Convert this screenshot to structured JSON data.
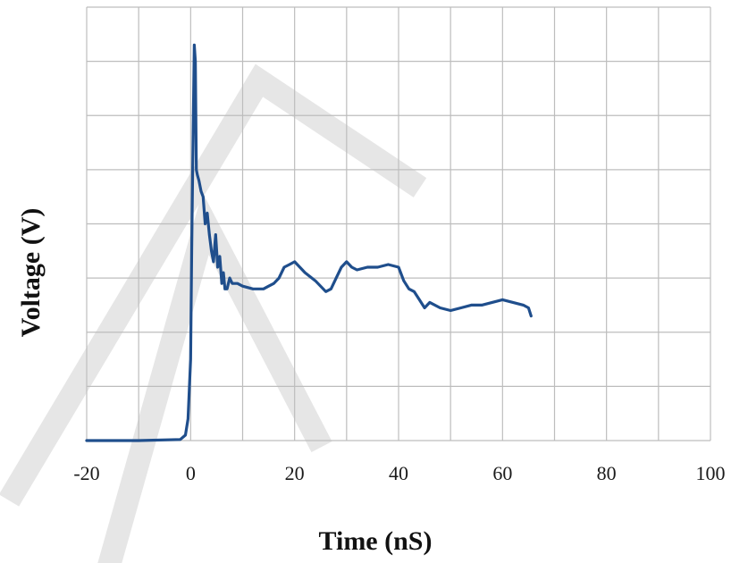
{
  "chart_data": {
    "type": "line",
    "title": "",
    "xlabel": "Time  (nS)",
    "ylabel": "Voltage (V)",
    "xlim": [
      -20,
      100
    ],
    "ylim": [
      0,
      8
    ],
    "x_ticks": [
      "-20",
      "0",
      "20",
      "40",
      "60",
      "80",
      "100"
    ],
    "y_ticks_labeled": false,
    "grid": true,
    "colors": {
      "series": "#1f4e8c",
      "grid": "#bdbdbd",
      "watermark": "#e6e6e6"
    },
    "series": [
      {
        "x": [
          -20,
          -10,
          -2,
          -1,
          -0.5,
          0,
          0.2,
          0.5,
          0.7,
          0.9,
          1.1,
          1.3,
          1.6,
          2.0,
          2.4,
          2.8,
          3.2,
          3.6,
          4.0,
          4.4,
          4.8,
          5.2,
          5.6,
          6.0,
          6.3,
          6.6,
          7.0,
          7.5,
          8.0,
          9.0,
          10,
          12,
          14,
          15,
          16,
          17,
          18,
          19,
          20,
          21,
          22,
          24,
          26,
          27,
          28,
          29,
          30,
          31,
          32,
          34,
          36,
          38,
          40,
          41,
          42,
          43,
          44,
          45,
          46,
          48,
          50,
          52,
          54,
          56,
          58,
          60,
          62,
          64,
          65,
          65.5
        ],
        "y": [
          0.0,
          0.0,
          0.02,
          0.1,
          0.4,
          1.5,
          3.5,
          5.8,
          7.3,
          7.0,
          5.0,
          4.9,
          4.8,
          4.6,
          4.5,
          4.0,
          4.2,
          3.8,
          3.5,
          3.3,
          3.8,
          3.2,
          3.4,
          2.9,
          3.1,
          2.8,
          2.8,
          3.0,
          2.9,
          2.9,
          2.85,
          2.8,
          2.8,
          2.85,
          2.9,
          3.0,
          3.2,
          3.25,
          3.3,
          3.2,
          3.1,
          2.95,
          2.75,
          2.8,
          3.0,
          3.2,
          3.3,
          3.2,
          3.15,
          3.2,
          3.2,
          3.25,
          3.2,
          2.95,
          2.8,
          2.75,
          2.6,
          2.45,
          2.55,
          2.45,
          2.4,
          2.45,
          2.5,
          2.5,
          2.55,
          2.6,
          2.55,
          2.5,
          2.45,
          2.3
        ]
      }
    ]
  }
}
